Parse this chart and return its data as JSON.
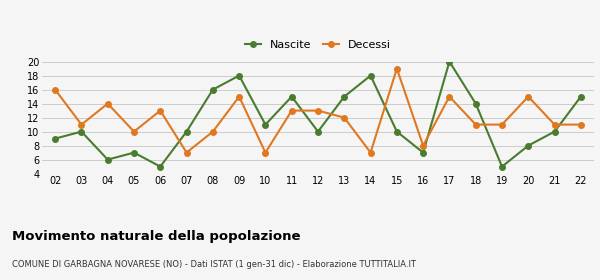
{
  "years": [
    "02",
    "03",
    "04",
    "05",
    "06",
    "07",
    "08",
    "09",
    "10",
    "11",
    "12",
    "13",
    "14",
    "15",
    "16",
    "17",
    "18",
    "19",
    "20",
    "21",
    "22"
  ],
  "nascite": [
    9,
    10,
    6,
    7,
    5,
    10,
    16,
    18,
    11,
    15,
    10,
    15,
    18,
    10,
    7,
    20,
    14,
    5,
    8,
    10,
    15
  ],
  "decessi": [
    16,
    11,
    14,
    10,
    13,
    7,
    10,
    15,
    7,
    13,
    13,
    12,
    7,
    19,
    8,
    15,
    11,
    11,
    15,
    11,
    11
  ],
  "nascite_color": "#4a7c2f",
  "decessi_color": "#e07820",
  "title": "Movimento naturale della popolazione",
  "subtitle": "COMUNE DI GARBAGNA NOVARESE (NO) - Dati ISTAT (1 gen-31 dic) - Elaborazione TUTTITALIA.IT",
  "legend_nascite": "Nascite",
  "legend_decessi": "Decessi",
  "ylim": [
    4,
    20
  ],
  "yticks": [
    4,
    6,
    8,
    10,
    12,
    14,
    16,
    18,
    20
  ],
  "bg_color": "#f5f5f5",
  "grid_color": "#cccccc"
}
